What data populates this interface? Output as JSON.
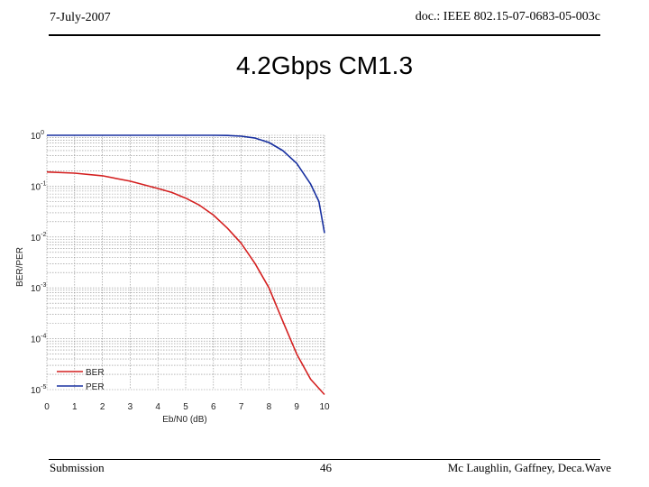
{
  "header": {
    "date": "7-July-2007",
    "doc": "doc.: IEEE 802.15-07-0683-05-003c"
  },
  "title": "4.2Gbps CM1.3",
  "footer": {
    "left": "Submission",
    "page": "46",
    "right": "Mc Laughlin, Gaffney, Deca.Wave"
  },
  "chart_data": {
    "type": "line",
    "title": "",
    "xlabel": "Eb/N0 (dB)",
    "ylabel": "BER/PER",
    "xlim": [
      0,
      10
    ],
    "ylim": [
      1e-05,
      1
    ],
    "yscale": "log",
    "grid": true,
    "legend_position": "bottom-left",
    "xticks": [
      0,
      1,
      2,
      3,
      4,
      5,
      6,
      7,
      8,
      9,
      10
    ],
    "yticks": [
      {
        "value": 1,
        "base": "10",
        "exp": "0"
      },
      {
        "value": 0.1,
        "base": "10",
        "exp": "-1"
      },
      {
        "value": 0.01,
        "base": "10",
        "exp": "-2"
      },
      {
        "value": 0.001,
        "base": "10",
        "exp": "-3"
      },
      {
        "value": 0.0001,
        "base": "10",
        "exp": "-4"
      },
      {
        "value": 1e-05,
        "base": "10",
        "exp": "-5"
      }
    ],
    "series": [
      {
        "name": "BER",
        "color": "#d42020",
        "x": [
          0,
          1,
          2,
          3,
          4,
          4.5,
          5,
          5.5,
          6,
          6.5,
          7,
          7.5,
          8,
          8.5,
          9,
          9.5,
          10
        ],
        "y": [
          0.19,
          0.18,
          0.16,
          0.125,
          0.09,
          0.075,
          0.058,
          0.042,
          0.027,
          0.015,
          0.0075,
          0.003,
          0.001,
          0.00022,
          5e-05,
          1.6e-05,
          8e-06
        ]
      },
      {
        "name": "PER",
        "color": "#1830a0",
        "x": [
          0,
          1,
          2,
          3,
          4,
          5,
          6,
          6.5,
          7,
          7.5,
          8,
          8.5,
          9,
          9.5,
          9.8,
          10
        ],
        "y": [
          1,
          1,
          1,
          1,
          1,
          1,
          1,
          0.99,
          0.96,
          0.88,
          0.72,
          0.5,
          0.28,
          0.11,
          0.05,
          0.012
        ]
      }
    ]
  }
}
